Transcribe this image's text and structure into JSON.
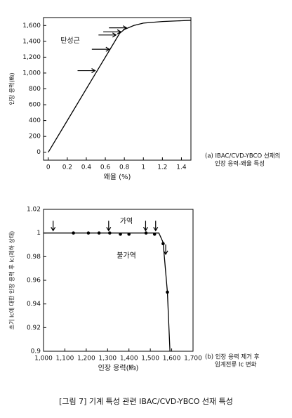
{
  "chart_data": [
    {
      "type": "line",
      "xlabel": "왜율 (%)",
      "ylabel": "인장 응력(㎫)",
      "xlim": [
        -0.05,
        1.5
      ],
      "ylim": [
        -100,
        1700
      ],
      "xticks": [
        0,
        0.2,
        0.4,
        0.6,
        0.8,
        1,
        1.2,
        1.4
      ],
      "yticks": [
        0,
        200,
        400,
        600,
        800,
        {
          "value": 1000,
          "label": "1,000"
        },
        {
          "value": 1200,
          "label": "1,200"
        },
        {
          "value": 1400,
          "label": "1,400"
        },
        {
          "value": 1600,
          "label": "1,600"
        }
      ],
      "series": [
        {
          "mode": "line",
          "color": "#000000",
          "x": [
            0,
            0.2,
            0.4,
            0.5,
            0.65,
            0.75,
            0.8,
            0.9,
            1.0,
            1.2,
            1.4,
            1.5
          ],
          "values": [
            0,
            400,
            800,
            1000,
            1300,
            1500,
            1550,
            1600,
            1630,
            1650,
            1660,
            1665
          ]
        },
        {
          "mode": "arrow-right",
          "color": "#000000",
          "x": [
            0.5,
            0.65,
            0.72,
            0.77,
            0.83
          ],
          "values": [
            1030,
            1300,
            1480,
            1520,
            1570
          ]
        }
      ],
      "annotations": [
        "탄성근"
      ],
      "caption": [
        "(a) IBAC/CVD-YBCO 선재의",
        "인장 응력-왜율 특성"
      ]
    },
    {
      "type": "line",
      "xlabel": "인장 응력(㎫)",
      "ylabel": "초기 Ic에 대한 인장 응력 후 Ic(제하 상태)",
      "xlim": [
        1000,
        1700
      ],
      "ylim": [
        0.9,
        1.02
      ],
      "xticks": [
        {
          "value": 1000,
          "label": "1,000"
        },
        {
          "value": 1100,
          "label": "1,100"
        },
        {
          "value": 1200,
          "label": "1,200"
        },
        {
          "value": 1300,
          "label": "1,300"
        },
        {
          "value": 1400,
          "label": "1,400"
        },
        {
          "value": 1500,
          "label": "1,500"
        },
        {
          "value": 1600,
          "label": "1,600"
        },
        {
          "value": 1700,
          "label": "1,700"
        }
      ],
      "yticks": [
        0.9,
        0.92,
        0.94,
        0.96,
        0.98,
        1,
        1.02
      ],
      "series": [
        {
          "mode": "line",
          "color": "#000000",
          "x": [
            1000,
            1540,
            1560,
            1580,
            1592
          ],
          "values": [
            1,
            1,
            0.992,
            0.95,
            0.9
          ]
        },
        {
          "mode": "dot",
          "color": "#000000",
          "x": [
            1140,
            1210,
            1260,
            1310,
            1360,
            1400,
            1480,
            1520,
            1560,
            1580
          ],
          "values": [
            1,
            1,
            1,
            1,
            0.999,
            0.999,
            1,
            0.999,
            0.991,
            0.95
          ]
        },
        {
          "mode": "arrow-down",
          "color": "#000000",
          "x": [
            1045,
            1305,
            1478,
            1525,
            1572
          ],
          "values": [
            1.002,
            1.002,
            1.002,
            1.002,
            0.982
          ]
        }
      ],
      "annotations": [
        "가역",
        "불가역"
      ],
      "caption": [
        "(b) 인장 응력 제거 후",
        "임계전류 Ic 변화"
      ]
    }
  ],
  "figure_caption": "[그림 7] 기계 특성 관련 IBAC/CVD-YBCO 선재 특성"
}
